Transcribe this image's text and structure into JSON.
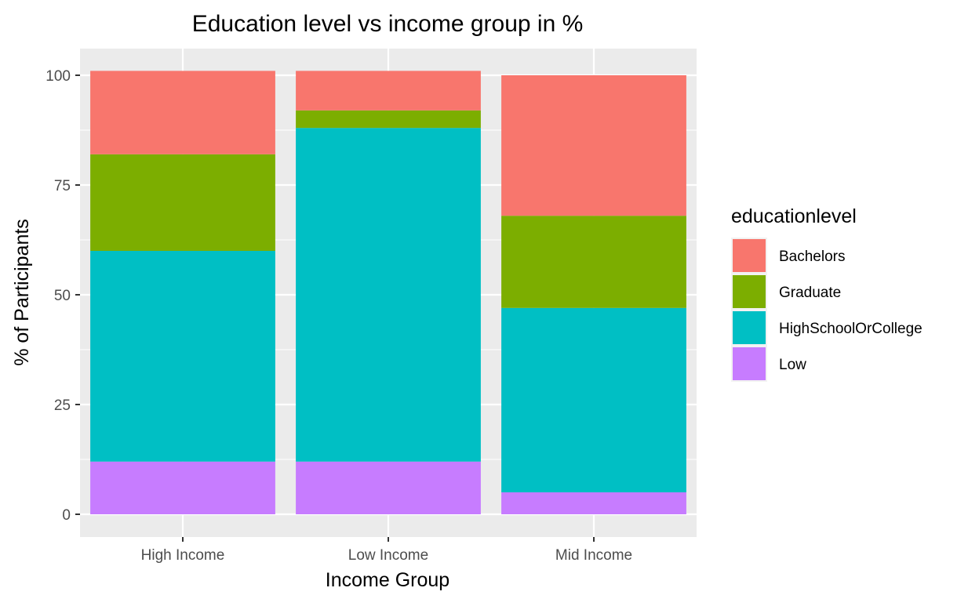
{
  "chart_data": {
    "type": "bar",
    "stacked": true,
    "title": "Education level vs income group in %",
    "xlabel": "Income Group",
    "ylabel": "% of Participants",
    "categories": [
      "High Income",
      "Low Income",
      "Mid Income"
    ],
    "ylim": [
      0,
      105
    ],
    "yticks": [
      0,
      25,
      50,
      75,
      100
    ],
    "grid": true,
    "legend": {
      "title": "educationlevel",
      "position": "right",
      "entries": [
        "Bachelors",
        "Graduate",
        "HighSchoolOrCollege",
        "Low"
      ]
    },
    "series": [
      {
        "name": "Low",
        "color": "#C77CFF",
        "values": [
          12,
          12,
          5
        ]
      },
      {
        "name": "HighSchoolOrCollege",
        "color": "#00BFC4",
        "values": [
          48,
          76,
          42
        ]
      },
      {
        "name": "Graduate",
        "color": "#7CAE00",
        "values": [
          22,
          4,
          21
        ]
      },
      {
        "name": "Bachelors",
        "color": "#F8766D",
        "values": [
          19,
          9,
          32
        ]
      }
    ],
    "panel_background": "#EBEBEB",
    "grid_color": "#FFFFFF"
  }
}
